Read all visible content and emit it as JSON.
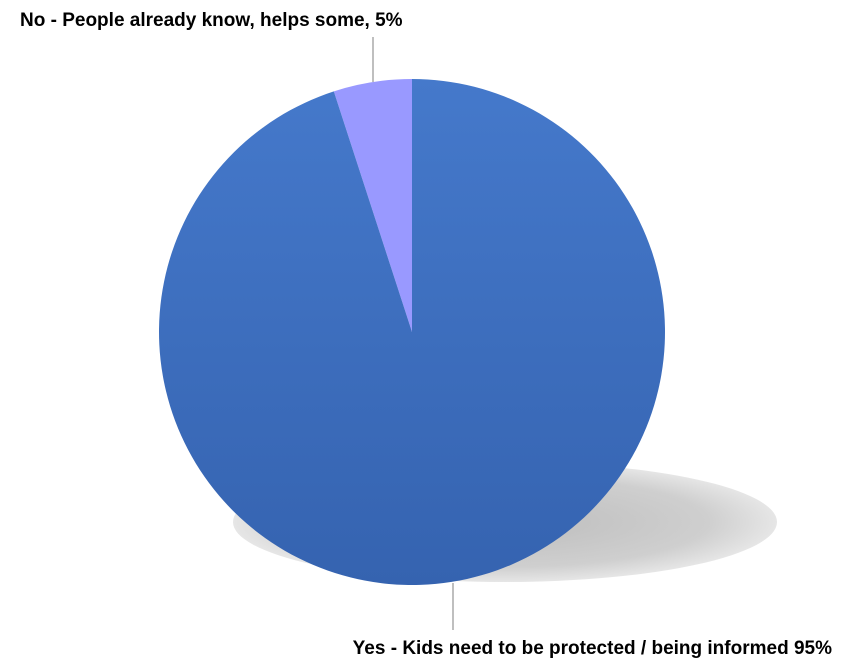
{
  "chart_data": {
    "type": "pie",
    "categories": [
      "No - People already know, helps some",
      "Yes - Kids need to be protected / being informed"
    ],
    "values": [
      5,
      95
    ],
    "data_labels": [
      "No - People already know, helps some, 5%",
      "Yes - Kids need to be protected / being informed 95%"
    ],
    "colors": [
      "#9999FF",
      "#4472C4"
    ],
    "title": "",
    "legend": "none"
  }
}
